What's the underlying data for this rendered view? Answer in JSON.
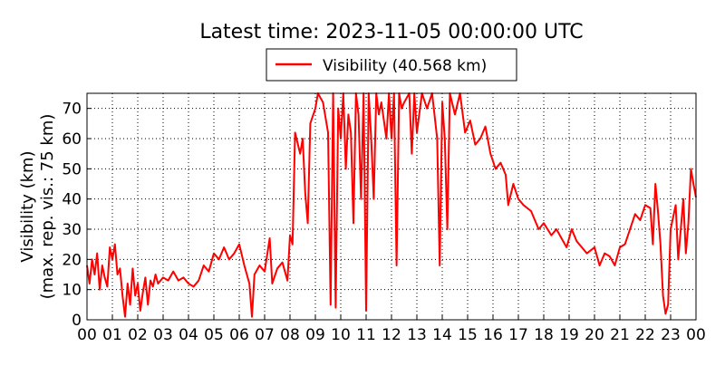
{
  "chart_data": {
    "type": "line",
    "title": "Latest time: 2023-11-05 00:00:00 UTC",
    "ylabel": [
      "Visibility (km)",
      "(max. rep. vis.: 75 km)"
    ],
    "x": [
      0,
      0.1,
      0.2,
      0.3,
      0.4,
      0.5,
      0.6,
      0.7,
      0.8,
      0.9,
      1.0,
      1.1,
      1.2,
      1.3,
      1.4,
      1.5,
      1.6,
      1.7,
      1.8,
      1.9,
      2.0,
      2.1,
      2.2,
      2.3,
      2.4,
      2.5,
      2.6,
      2.7,
      2.8,
      3.0,
      3.2,
      3.4,
      3.6,
      3.8,
      4.0,
      4.2,
      4.4,
      4.6,
      4.8,
      5.0,
      5.2,
      5.4,
      5.6,
      5.8,
      6.0,
      6.2,
      6.4,
      6.5,
      6.6,
      6.8,
      7.0,
      7.2,
      7.3,
      7.5,
      7.7,
      7.9,
      8.0,
      8.1,
      8.2,
      8.4,
      8.5,
      8.6,
      8.7,
      8.8,
      9.0,
      9.1,
      9.3,
      9.5,
      9.6,
      9.7,
      9.8,
      9.9,
      10.0,
      10.1,
      10.2,
      10.3,
      10.4,
      10.5,
      10.6,
      10.7,
      10.8,
      10.9,
      11.0,
      11.1,
      11.2,
      11.3,
      11.4,
      11.5,
      11.6,
      11.8,
      11.9,
      12.0,
      12.1,
      12.2,
      12.3,
      12.4,
      12.5,
      12.7,
      12.8,
      12.9,
      13.0,
      13.2,
      13.4,
      13.6,
      13.8,
      13.9,
      14.0,
      14.1,
      14.2,
      14.3,
      14.5,
      14.7,
      14.9,
      15.1,
      15.3,
      15.5,
      15.7,
      15.9,
      16.1,
      16.3,
      16.5,
      16.6,
      16.8,
      17.0,
      17.2,
      17.5,
      17.8,
      18.0,
      18.3,
      18.5,
      18.7,
      18.9,
      19.1,
      19.3,
      19.5,
      19.7,
      20.0,
      20.2,
      20.4,
      20.6,
      20.8,
      21.0,
      21.2,
      21.4,
      21.6,
      21.8,
      22.0,
      22.2,
      22.3,
      22.4,
      22.5,
      22.6,
      22.7,
      22.8,
      22.9,
      23.0,
      23.2,
      23.3,
      23.5,
      23.6,
      23.7,
      23.8,
      23.9,
      24.0
    ],
    "series": [
      {
        "name": "Visibility (40.568 km)",
        "color": "#ff0000",
        "values": [
          18,
          12,
          20,
          15,
          22,
          10,
          18,
          14,
          11,
          24,
          20,
          25,
          15,
          17,
          8,
          1,
          12,
          5,
          17,
          8,
          12,
          3,
          9,
          14,
          5,
          13,
          11,
          15,
          12,
          14,
          13,
          16,
          13,
          14,
          12,
          11,
          13,
          18,
          16,
          22,
          20,
          24,
          20,
          22,
          25,
          18,
          12,
          1,
          15,
          18,
          16,
          27,
          12,
          17,
          19,
          13,
          28,
          25,
          62,
          55,
          60,
          42,
          32,
          65,
          70,
          75,
          72,
          62,
          5,
          75,
          4,
          70,
          60,
          75,
          50,
          68,
          62,
          32,
          75,
          68,
          40,
          75,
          3,
          75,
          60,
          40,
          75,
          68,
          72,
          60,
          75,
          60,
          75,
          18,
          75,
          70,
          72,
          75,
          55,
          75,
          62,
          75,
          70,
          75,
          60,
          18,
          72,
          60,
          30,
          75,
          68,
          75,
          62,
          66,
          58,
          60,
          64,
          55,
          50,
          52,
          48,
          38,
          45,
          40,
          38,
          36,
          30,
          32,
          28,
          30,
          27,
          24,
          30,
          26,
          24,
          22,
          24,
          18,
          22,
          21,
          18,
          24,
          25,
          30,
          35,
          33,
          38,
          37,
          25,
          45,
          36,
          25,
          8,
          2,
          5,
          30,
          38,
          20,
          40,
          22,
          32,
          50,
          45,
          40.568
        ]
      }
    ],
    "xlim": [
      0,
      24
    ],
    "xticks": [
      {
        "value": 0,
        "label": "00"
      },
      {
        "value": 1,
        "label": "01"
      },
      {
        "value": 2,
        "label": "02"
      },
      {
        "value": 3,
        "label": "03"
      },
      {
        "value": 4,
        "label": "04"
      },
      {
        "value": 5,
        "label": "05"
      },
      {
        "value": 6,
        "label": "06"
      },
      {
        "value": 7,
        "label": "07"
      },
      {
        "value": 8,
        "label": "08"
      },
      {
        "value": 9,
        "label": "09"
      },
      {
        "value": 10,
        "label": "10"
      },
      {
        "value": 11,
        "label": "11"
      },
      {
        "value": 12,
        "label": "12"
      },
      {
        "value": 13,
        "label": "13"
      },
      {
        "value": 14,
        "label": "14"
      },
      {
        "value": 15,
        "label": "15"
      },
      {
        "value": 16,
        "label": "16"
      },
      {
        "value": 17,
        "label": "17"
      },
      {
        "value": 18,
        "label": "18"
      },
      {
        "value": 19,
        "label": "19"
      },
      {
        "value": 20,
        "label": "20"
      },
      {
        "value": 21,
        "label": "21"
      },
      {
        "value": 22,
        "label": "22"
      },
      {
        "value": 23,
        "label": "23"
      },
      {
        "value": 24,
        "label": "00"
      }
    ],
    "ylim": [
      0,
      75
    ],
    "yticks": [
      0,
      10,
      20,
      30,
      40,
      50,
      60,
      70
    ],
    "grid": true
  }
}
